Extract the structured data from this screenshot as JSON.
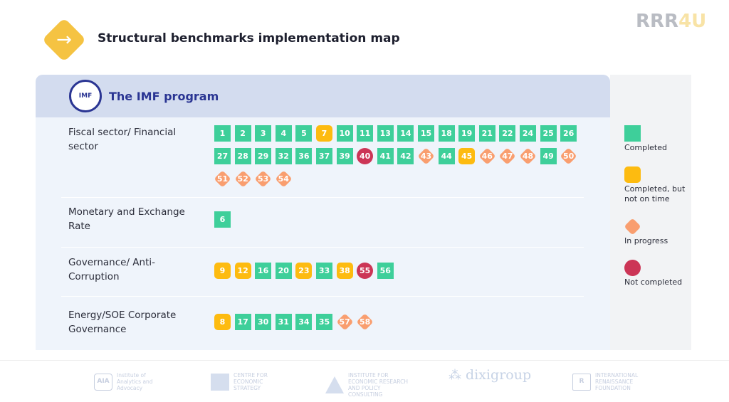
{
  "header": {
    "title": "Structural benchmarks implementation map",
    "brand_main": "RRR",
    "brand_accent": "4U",
    "icon": "arrow-right-icon"
  },
  "panel": {
    "title": "The IMF program",
    "seal_text": "IMF"
  },
  "colors": {
    "completed": "#3ecf9a",
    "late": "#fdbb10",
    "in_progress": "#f99e6f",
    "not_completed": "#cc3556"
  },
  "legend": [
    {
      "status": "c",
      "label": "Completed"
    },
    {
      "status": "l",
      "label": "Completed, but not on time"
    },
    {
      "status": "p",
      "label": "In progress"
    },
    {
      "status": "r",
      "label": "Not completed"
    }
  ],
  "sectors": [
    {
      "label": "Fiscal sector/ Financial sector",
      "items": [
        [
          "1",
          "c"
        ],
        [
          "2",
          "c"
        ],
        [
          "3",
          "c"
        ],
        [
          "4",
          "c"
        ],
        [
          "5",
          "c"
        ],
        [
          "7",
          "l"
        ],
        [
          "10",
          "c"
        ],
        [
          "11",
          "c"
        ],
        [
          "13",
          "c"
        ],
        [
          "14",
          "c"
        ],
        [
          "15",
          "c"
        ],
        [
          "18",
          "c"
        ],
        [
          "19",
          "c"
        ],
        [
          "21",
          "c"
        ],
        [
          "22",
          "c"
        ],
        [
          "24",
          "c"
        ],
        [
          "25",
          "c"
        ],
        [
          "26",
          "c"
        ],
        [
          "27",
          "c"
        ],
        [
          "28",
          "c"
        ],
        [
          "29",
          "c"
        ],
        [
          "32",
          "c"
        ],
        [
          "36",
          "c"
        ],
        [
          "37",
          "c"
        ],
        [
          "39",
          "c"
        ],
        [
          "40",
          "r"
        ],
        [
          "41",
          "c"
        ],
        [
          "42",
          "c"
        ],
        [
          "43",
          "p"
        ],
        [
          "44",
          "c"
        ],
        [
          "45",
          "l"
        ],
        [
          "46",
          "p"
        ],
        [
          "47",
          "p"
        ],
        [
          "48",
          "p"
        ],
        [
          "49",
          "c"
        ],
        [
          "50",
          "p"
        ],
        [
          "51",
          "p"
        ],
        [
          "52",
          "p"
        ],
        [
          "53",
          "p"
        ],
        [
          "54",
          "p"
        ]
      ]
    },
    {
      "label": "Monetary and Exchange Rate",
      "items": [
        [
          "6",
          "c"
        ]
      ]
    },
    {
      "label": "Governance/ Anti-Corruption",
      "items": [
        [
          "9",
          "l"
        ],
        [
          "12",
          "l"
        ],
        [
          "16",
          "c"
        ],
        [
          "20",
          "c"
        ],
        [
          "23",
          "l"
        ],
        [
          "33",
          "c"
        ],
        [
          "38",
          "l"
        ],
        [
          "55",
          "r"
        ],
        [
          "56",
          "c"
        ]
      ]
    },
    {
      "label": "Energy/SOE Corporate Governance",
      "items": [
        [
          "8",
          "l"
        ],
        [
          "17",
          "c"
        ],
        [
          "30",
          "c"
        ],
        [
          "31",
          "c"
        ],
        [
          "34",
          "c"
        ],
        [
          "35",
          "c"
        ],
        [
          "57",
          "p"
        ],
        [
          "58",
          "p"
        ]
      ]
    }
  ],
  "partners": [
    {
      "logo": "AIA",
      "name": "Institute of Analytics and Advocacy"
    },
    {
      "logo": "",
      "name": "CENTRE FOR ECONOMIC STRATEGY"
    },
    {
      "logo": "",
      "name": "INSTITUTE FOR ECONOMIC RESEARCH AND POLICY CONSULTING"
    },
    {
      "logo": "",
      "name": "dixigroup"
    },
    {
      "logo": "R",
      "name": "INTERNATIONAL RENAISSANCE FOUNDATION"
    }
  ]
}
